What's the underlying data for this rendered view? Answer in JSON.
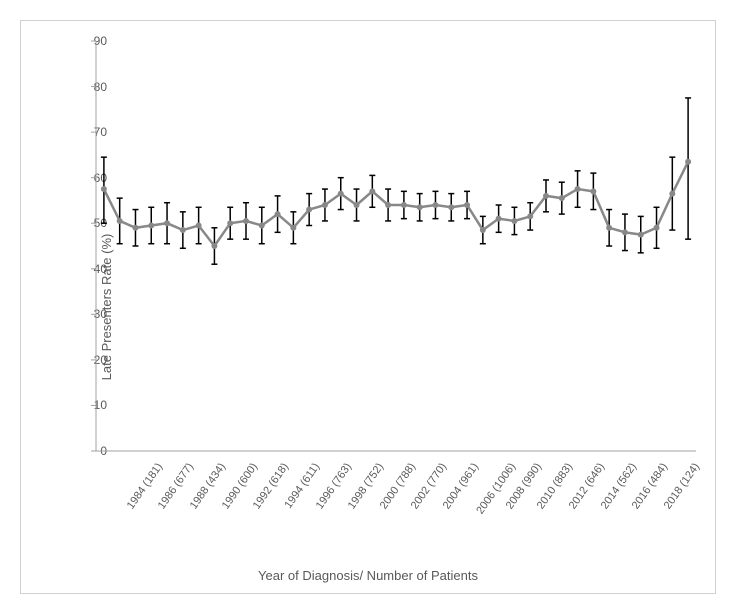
{
  "chart": {
    "type": "line_with_errorbars",
    "ylabel": "Late Presenters Rate (%)",
    "xlabel": "Year of Diagnosis/ Number of Patients",
    "ylim": [
      0,
      90
    ],
    "ytick_step": 10,
    "background_color": "#ffffff",
    "border_color": "#d0d0d0",
    "line_color": "#888888",
    "line_width": 2.5,
    "marker_color": "#888888",
    "marker_radius": 3,
    "errorbar_color": "#000000",
    "errorbar_width": 1.5,
    "errorbar_cap_width": 6,
    "label_fontsize": 13,
    "tick_fontsize": 12,
    "xtick_fontsize": 11,
    "xtick_rotation": -55,
    "text_color": "#595959",
    "categories": [
      "1984 (181)",
      "",
      "1986 (677)",
      "",
      "1988 (434)",
      "",
      "1990 (600)",
      "",
      "1992 (618)",
      "",
      "1994 (611)",
      "",
      "1996 (763)",
      "",
      "1998 (752)",
      "",
      "2000 (788)",
      "",
      "2002 (770)",
      "",
      "2004 (961)",
      "",
      "2006 (1006)",
      "",
      "2008 (990)",
      "",
      "2010 (883)",
      "",
      "2012 (646)",
      "",
      "2014 (562)",
      "",
      "2016 (484)",
      "",
      "2018 (124)",
      ""
    ],
    "values": [
      57.5,
      50.5,
      49.0,
      49.5,
      50.0,
      48.5,
      49.5,
      45.0,
      50.0,
      50.5,
      49.5,
      52.0,
      49.0,
      53.0,
      54.0,
      56.5,
      54.0,
      57.0,
      54.0,
      54.0,
      53.5,
      54.0,
      53.5,
      54.0,
      48.5,
      51.0,
      50.5,
      51.5,
      56.0,
      55.5,
      57.5,
      57.0,
      49.0,
      48.0,
      47.5,
      49.0,
      56.5,
      63.5
    ],
    "err_low": [
      7.5,
      5.0,
      4.0,
      4.0,
      4.5,
      4.0,
      4.0,
      4.0,
      3.5,
      4.0,
      4.0,
      4.0,
      3.5,
      3.5,
      3.5,
      3.5,
      3.5,
      3.5,
      3.5,
      3.0,
      3.0,
      3.0,
      3.0,
      3.0,
      3.0,
      3.0,
      3.0,
      3.0,
      3.5,
      3.5,
      4.0,
      4.0,
      4.0,
      4.0,
      4.0,
      4.5,
      8.0,
      17.0
    ],
    "err_high": [
      7.0,
      5.0,
      4.0,
      4.0,
      4.5,
      4.0,
      4.0,
      4.0,
      3.5,
      4.0,
      4.0,
      4.0,
      3.5,
      3.5,
      3.5,
      3.5,
      3.5,
      3.5,
      3.5,
      3.0,
      3.0,
      3.0,
      3.0,
      3.0,
      3.0,
      3.0,
      3.0,
      3.0,
      3.5,
      3.5,
      4.0,
      4.0,
      4.0,
      4.0,
      4.0,
      4.5,
      8.0,
      14.0
    ]
  }
}
